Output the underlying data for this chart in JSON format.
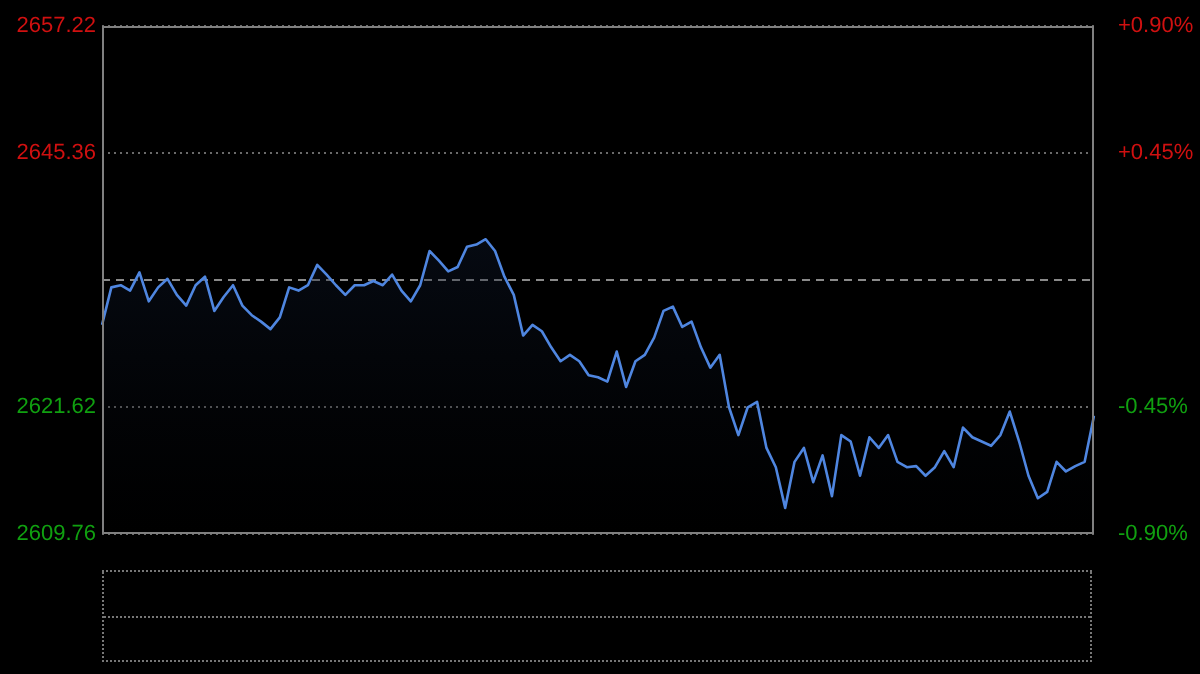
{
  "chart_data": {
    "type": "area",
    "categories": [
      null,
      null,
      null,
      null,
      null,
      null,
      null,
      null,
      null,
      null,
      null,
      null,
      null,
      null,
      null,
      null,
      null,
      null,
      null,
      null,
      null,
      null,
      null,
      null,
      null,
      null,
      null,
      null,
      null,
      null,
      null,
      null,
      null,
      null,
      null,
      null,
      null,
      null,
      null,
      null,
      null,
      null,
      null,
      null,
      null,
      null,
      null,
      null,
      null,
      null,
      null,
      null,
      null,
      null,
      null,
      null,
      null,
      null,
      null,
      null,
      null,
      null,
      null,
      null,
      null,
      null,
      null,
      null,
      null,
      null,
      null,
      null,
      null,
      null,
      null,
      null,
      null,
      null,
      null,
      null,
      null,
      null,
      null,
      null,
      null,
      null,
      null,
      null,
      null,
      null,
      null,
      null,
      null,
      null,
      null,
      null,
      null,
      null,
      null,
      null,
      null,
      null,
      null,
      null,
      null,
      null,
      null
    ],
    "series": [
      {
        "color": "#4f86e0",
        "values": [
          2629.3,
          2632.8,
          2633.0,
          2632.5,
          2634.2,
          2631.5,
          2632.8,
          2633.6,
          2632.1,
          2631.1,
          2633.0,
          2633.8,
          2630.6,
          2631.9,
          2633.0,
          2631.1,
          2630.2,
          2629.6,
          2628.9,
          2630.0,
          2632.8,
          2632.5,
          2633.0,
          2634.9,
          2634.0,
          2633.0,
          2632.1,
          2633.0,
          2633.0,
          2633.4,
          2633.0,
          2634.0,
          2632.5,
          2631.5,
          2633.0,
          2636.2,
          2635.3,
          2634.3,
          2634.7,
          2636.6,
          2636.8,
          2637.3,
          2636.2,
          2633.8,
          2632.1,
          2628.3,
          2629.3,
          2628.7,
          2627.2,
          2625.9,
          2626.5,
          2625.9,
          2624.6,
          2624.4,
          2624.0,
          2626.8,
          2623.5,
          2625.9,
          2626.5,
          2628.1,
          2630.6,
          2631.0,
          2629.1,
          2629.6,
          2627.2,
          2625.3,
          2626.5,
          2621.6,
          2619.0,
          2621.6,
          2622.1,
          2617.8,
          2616.0,
          2612.2,
          2616.5,
          2617.8,
          2614.6,
          2617.1,
          2613.3,
          2619.0,
          2618.4,
          2615.2,
          2618.8,
          2617.8,
          2619.0,
          2616.5,
          2616.0,
          2616.1,
          2615.2,
          2616.0,
          2617.5,
          2616.0,
          2619.7,
          2618.8,
          2618.4,
          2618.0,
          2619.0,
          2621.2,
          2618.4,
          2615.2,
          2613.1,
          2613.7,
          2616.5,
          2615.6,
          2616.1,
          2616.5,
          2620.8
        ]
      }
    ],
    "ylim": [
      2609.76,
      2657.22
    ],
    "yticks": [
      2609.76,
      2621.62,
      2645.36,
      2657.22
    ],
    "y2lim": [
      -0.9,
      0.9
    ],
    "y2ticks": [
      {
        "value": -0.9,
        "label": "-0.90%"
      },
      {
        "value": -0.45,
        "label": "-0.45%"
      },
      {
        "value": 0.45,
        "label": "+0.45%"
      },
      {
        "value": 0.9,
        "label": "+0.90%"
      }
    ],
    "ref_lines": [
      {
        "axis": "y",
        "value": 2633.49,
        "line_style": "dashed",
        "color": "#8a8a8a"
      }
    ],
    "grid": "y",
    "legend": false,
    "marker": "none"
  }
}
